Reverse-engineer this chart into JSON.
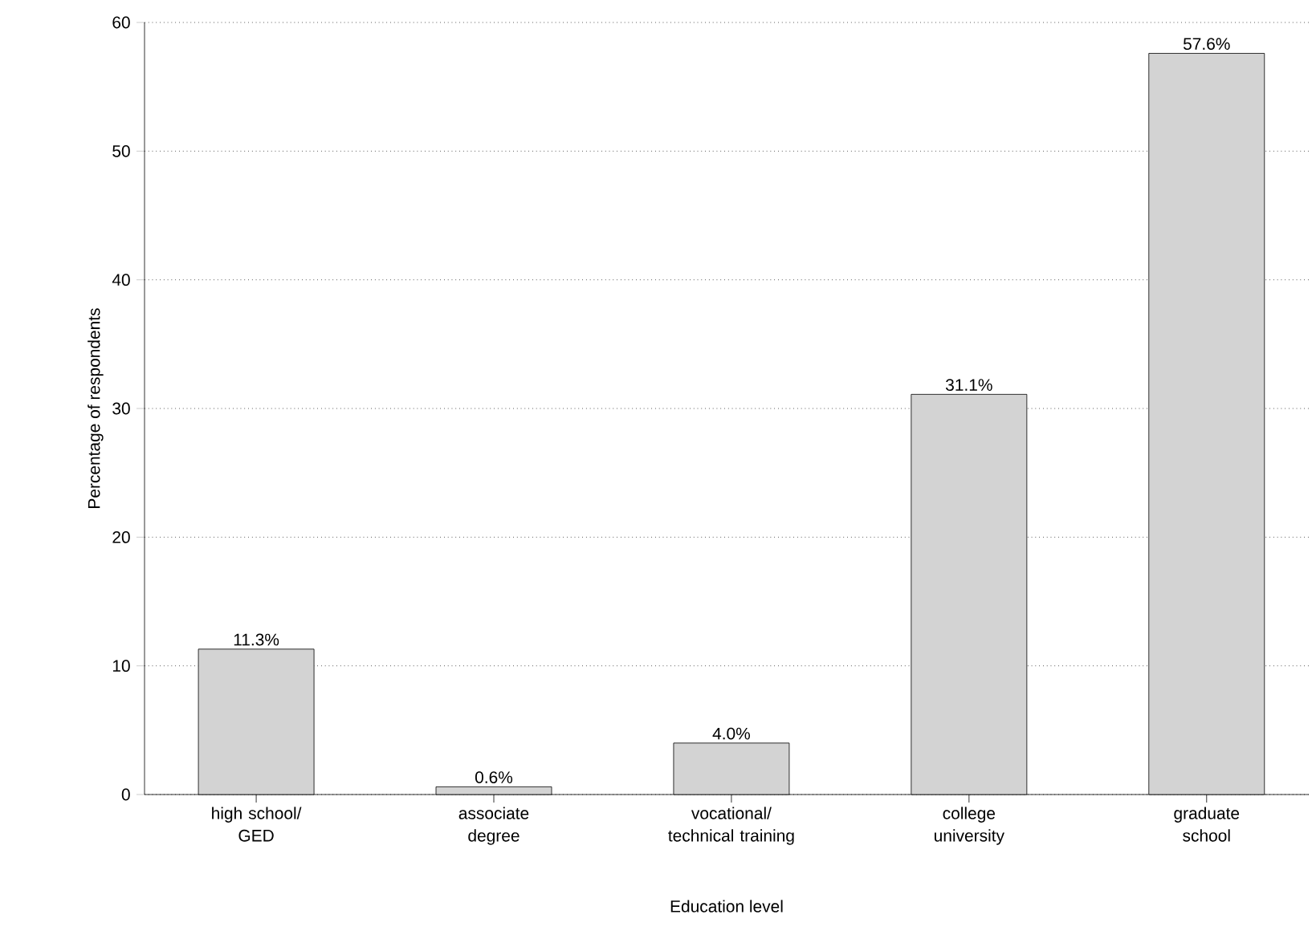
{
  "chart_data": {
    "type": "bar",
    "xlabel": "Education level",
    "ylabel": "Percentage of respondents",
    "categories": [
      "high school/ GED",
      "associate degree",
      "vocational/ technical training",
      "college university",
      "graduate school"
    ],
    "values": [
      11.3,
      0.6,
      4.0,
      31.1,
      57.6
    ],
    "value_labels": [
      "11.3%",
      "0.6%",
      "4.0%",
      "31.1%",
      "57.6%"
    ],
    "color": "#d3d3d3",
    "ylim": [
      0,
      60
    ],
    "yticks": [
      0,
      10,
      20,
      30,
      40,
      50,
      60
    ],
    "grid": "y"
  }
}
